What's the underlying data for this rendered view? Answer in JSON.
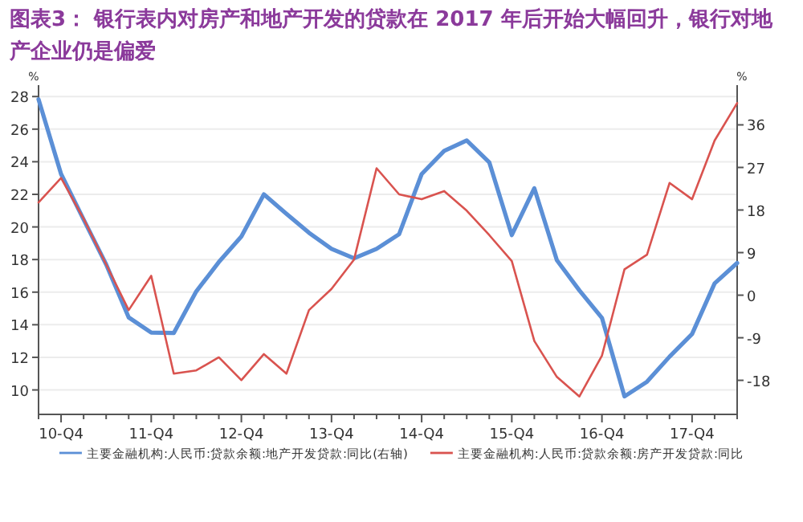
{
  "chart_data": {
    "type": "line",
    "title": "图表3：  银行表内对房产和地产开发的贷款在 2017 年后开始大幅回升，银行对地产企业仍是偏爱",
    "ylabel": "%",
    "y2label": "%",
    "categories": [
      null,
      "10-Q4",
      null,
      null,
      null,
      "11-Q4",
      null,
      null,
      null,
      "12-Q4",
      null,
      null,
      null,
      "13-Q4",
      null,
      null,
      null,
      "14-Q4",
      null,
      null,
      null,
      "15-Q4",
      null,
      null,
      null,
      "16-Q4",
      null,
      null,
      null,
      "17-Q4",
      null,
      null
    ],
    "series": [
      {
        "name": "主要金融机构:人民币:贷款余额:地产开发贷款:同比(右轴)",
        "color": "#5b8fd6",
        "axis": "y2",
        "values": [
          41.4,
          25.6,
          16.0,
          6.5,
          -4.7,
          -7.9,
          -8.0,
          0.8,
          7.0,
          12.4,
          21.3,
          17.2,
          13.2,
          9.8,
          7.8,
          9.8,
          12.9,
          25.6,
          30.5,
          32.7,
          28.1,
          12.7,
          22.6,
          7.4,
          1.0,
          -4.8,
          -21.4,
          -18.3,
          -13.0,
          -8.2,
          2.5,
          6.8
        ]
      },
      {
        "name": "主要金融机构:人民币:贷款余额:房产开发贷款:同比",
        "color": "#d9534f",
        "values": [
          21.5,
          23.0,
          20.5,
          17.7,
          14.9,
          17.0,
          11.0,
          11.2,
          12.0,
          10.6,
          12.2,
          11.0,
          14.9,
          16.2,
          18.0,
          23.6,
          22.0,
          21.7,
          22.2,
          21.0,
          19.5,
          17.9,
          13.0,
          10.8,
          9.6,
          12.1,
          17.4,
          18.3,
          22.7,
          21.7,
          25.3,
          27.6
        ]
      }
    ],
    "ylim": [
      8.5,
      28.7
    ],
    "yticks": [
      10,
      12,
      14,
      16,
      18,
      20,
      22,
      24,
      26,
      28
    ],
    "y2lim": [
      -25.2,
      44.4
    ],
    "y2ticks": [
      -18,
      -9,
      0,
      9,
      18,
      27,
      36
    ],
    "grid": "y",
    "legend": "bottom",
    "line_style": "solid",
    "marker": "none"
  }
}
